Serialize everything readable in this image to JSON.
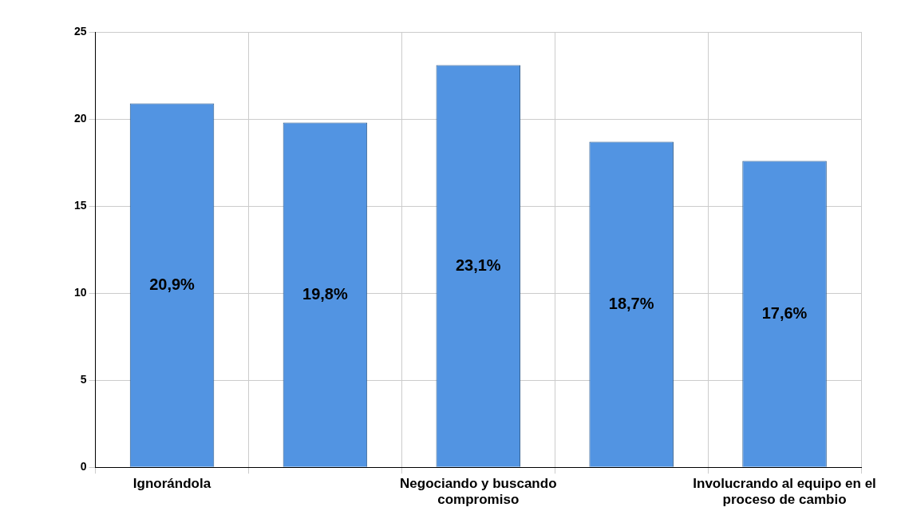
{
  "chart_data": {
    "type": "bar",
    "categories": [
      "Ignorándola",
      null,
      "Negociando y buscando compromiso",
      null,
      "Involucrando al equipo en el proceso de cambio"
    ],
    "values": [
      20.9,
      19.8,
      23.1,
      18.7,
      17.6
    ],
    "value_labels": [
      "20,9%",
      "19,8%",
      "23,1%",
      "18,7%",
      "17,6%"
    ],
    "color": "#5294e2",
    "ylim": [
      0,
      25
    ],
    "yticks": [
      0,
      5,
      10,
      15,
      20,
      25
    ],
    "grid": true,
    "legend": false
  }
}
